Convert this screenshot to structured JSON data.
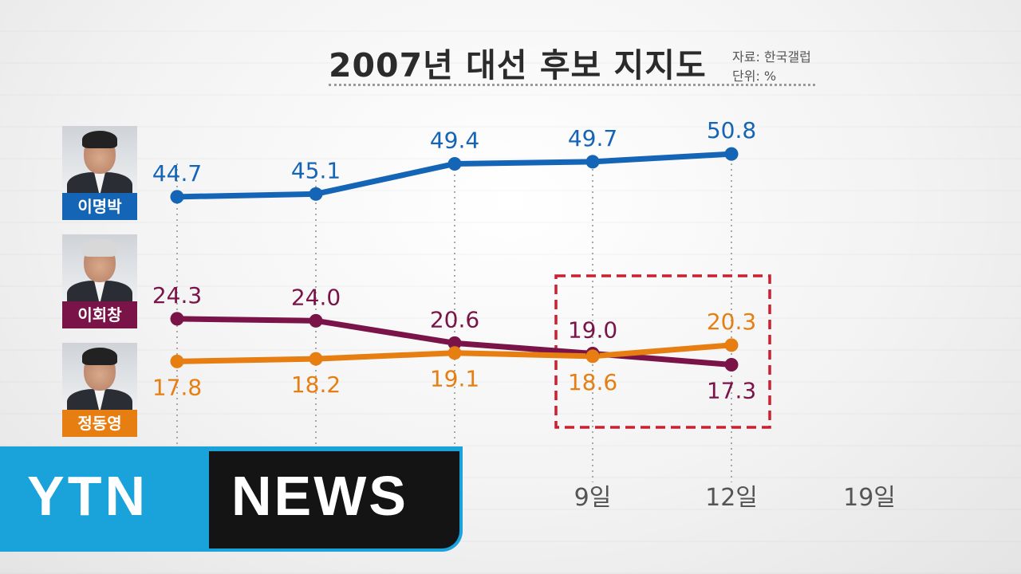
{
  "header": {
    "title": "2007년 대선 후보 지지도",
    "source": "자료: 한국갤럽",
    "unit": "단위: %"
  },
  "candidates": [
    {
      "name": "이명박",
      "color": "#1565b6"
    },
    {
      "name": "이회창",
      "color": "#7a1448"
    },
    {
      "name": "정동영",
      "color": "#e67e12"
    }
  ],
  "chart_data": {
    "type": "line",
    "x_visible_labels": [
      "9일",
      "12일",
      "19일"
    ],
    "series": [
      {
        "name": "이명박",
        "color": "#1565b6",
        "values": [
          44.7,
          45.1,
          49.4,
          49.7,
          50.8
        ]
      },
      {
        "name": "이회창",
        "color": "#7a1448",
        "values": [
          24.3,
          24.0,
          20.6,
          19.0,
          17.3
        ]
      },
      {
        "name": "정동영",
        "color": "#e67e12",
        "values": [
          17.8,
          18.2,
          19.1,
          18.6,
          20.3
        ]
      }
    ],
    "highlight": {
      "color": "#cc1f2f",
      "style": "dashed",
      "covers_points": [
        3,
        4
      ]
    },
    "grid": "dotted vertical lines"
  },
  "logo": {
    "part1": "YTN",
    "part2": "NEWS",
    "accent": "#1aa3db"
  }
}
